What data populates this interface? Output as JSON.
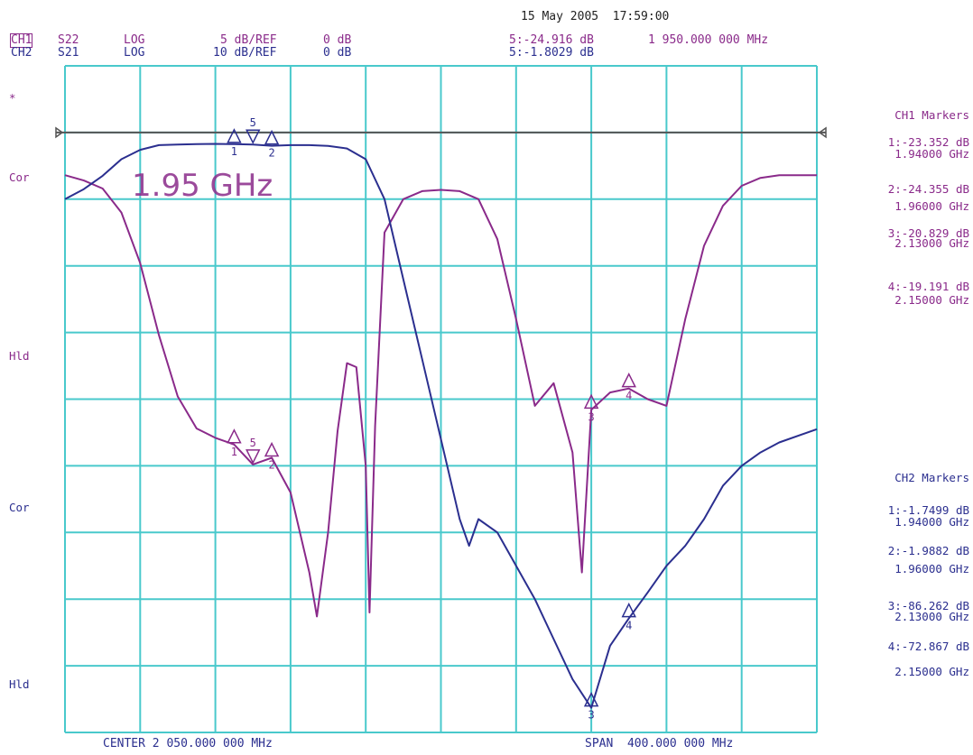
{
  "header": {
    "datetime": "15 May 2005  17:59:00",
    "ch1": {
      "label": "CH1",
      "param": "S22",
      "format": "LOG",
      "scale": "5 dB/REF",
      "ref": "0 dB"
    },
    "ch2": {
      "label": "CH2",
      "param": "S21",
      "format": "LOG",
      "scale": "10 dB/REF",
      "ref": "0 dB"
    },
    "marker5_ch1": "5:-24.916 dB",
    "marker5_freq": "1 950.000 000 MHz",
    "marker5_ch2": "5:-1.8029 dB"
  },
  "footer": {
    "center": "CENTER 2 050.000 000 MHz",
    "span": "SPAN  400.000 000 MHz"
  },
  "side_labels": {
    "star": "*",
    "cor1": "Cor",
    "hld1": "Hld",
    "cor2": "Cor",
    "hld2": "Hld"
  },
  "annotation": "1.95 GHz",
  "ch1_markers": {
    "title": "CH1 Markers",
    "items": [
      {
        "value": "1:-23.352 dB",
        "freq": "1.94000 GHz"
      },
      {
        "value": "2:-24.355 dB",
        "freq": "1.96000 GHz"
      },
      {
        "value": "3:-20.829 dB",
        "freq": "2.13000 GHz"
      },
      {
        "value": "4:-19.191 dB",
        "freq": "2.15000 GHz"
      }
    ]
  },
  "ch2_markers": {
    "title": "CH2 Markers",
    "items": [
      {
        "value": "1:-1.7499 dB",
        "freq": "1.94000 GHz"
      },
      {
        "value": "2:-1.9882 dB",
        "freq": "1.96000 GHz"
      },
      {
        "value": "3:-86.262 dB",
        "freq": "2.13000 GHz"
      },
      {
        "value": "4:-72.867 dB",
        "freq": "2.15000 GHz"
      }
    ]
  },
  "colors": {
    "grid": "#49c9cc",
    "ch1": "#8a2a8a",
    "ch2": "#2b2f8f",
    "ref_line": "#555555"
  },
  "chart_data": {
    "type": "line",
    "title": "",
    "xlabel": "",
    "ylabel": "",
    "x_unit": "GHz",
    "xlim": [
      1.85,
      2.25
    ],
    "grid": true,
    "series": [
      {
        "name": "CH1 S22",
        "scale_db_per_div": 5,
        "ref_db": 0,
        "ylim": [
          -45,
          5
        ],
        "points": [
          [
            1.85,
            -3.2
          ],
          [
            1.86,
            -3.6
          ],
          [
            1.87,
            -4.2
          ],
          [
            1.88,
            -6.0
          ],
          [
            1.89,
            -9.8
          ],
          [
            1.9,
            -15.2
          ],
          [
            1.91,
            -19.8
          ],
          [
            1.92,
            -22.2
          ],
          [
            1.93,
            -22.9
          ],
          [
            1.94,
            -23.4
          ],
          [
            1.95,
            -24.9
          ],
          [
            1.96,
            -24.4
          ],
          [
            1.97,
            -27.0
          ],
          [
            1.98,
            -33.0
          ],
          [
            1.984,
            -36.3
          ],
          [
            1.99,
            -30.0
          ],
          [
            1.995,
            -22.4
          ],
          [
            2.0,
            -17.3
          ],
          [
            2.005,
            -17.6
          ],
          [
            2.01,
            -25.0
          ],
          [
            2.012,
            -36.0
          ],
          [
            2.015,
            -22.0
          ],
          [
            2.02,
            -7.5
          ],
          [
            2.03,
            -5.0
          ],
          [
            2.04,
            -4.4
          ],
          [
            2.05,
            -4.3
          ],
          [
            2.06,
            -4.4
          ],
          [
            2.07,
            -5.0
          ],
          [
            2.08,
            -8.0
          ],
          [
            2.09,
            -14.0
          ],
          [
            2.1,
            -20.5
          ],
          [
            2.11,
            -18.8
          ],
          [
            2.12,
            -24.0
          ],
          [
            2.125,
            -33.0
          ],
          [
            2.13,
            -20.8
          ],
          [
            2.14,
            -19.5
          ],
          [
            2.15,
            -19.2
          ],
          [
            2.16,
            -20.0
          ],
          [
            2.17,
            -20.5
          ],
          [
            2.18,
            -14.0
          ],
          [
            2.19,
            -8.5
          ],
          [
            2.2,
            -5.5
          ],
          [
            2.21,
            -4.0
          ],
          [
            2.22,
            -3.4
          ],
          [
            2.23,
            -3.2
          ],
          [
            2.25,
            -3.2
          ]
        ]
      },
      {
        "name": "CH2 S21",
        "scale_db_per_div": 10,
        "ref_db": 0,
        "ylim": [
          -90,
          10
        ],
        "points": [
          [
            1.85,
            -10.0
          ],
          [
            1.86,
            -8.5
          ],
          [
            1.87,
            -6.5
          ],
          [
            1.88,
            -4.0
          ],
          [
            1.89,
            -2.6
          ],
          [
            1.9,
            -1.9
          ],
          [
            1.91,
            -1.8
          ],
          [
            1.92,
            -1.75
          ],
          [
            1.93,
            -1.7
          ],
          [
            1.94,
            -1.75
          ],
          [
            1.95,
            -1.8
          ],
          [
            1.96,
            -1.99
          ],
          [
            1.97,
            -1.9
          ],
          [
            1.98,
            -1.9
          ],
          [
            1.99,
            -2.0
          ],
          [
            2.0,
            -2.4
          ],
          [
            2.01,
            -4.0
          ],
          [
            2.02,
            -10.0
          ],
          [
            2.03,
            -22.0
          ],
          [
            2.04,
            -34.0
          ],
          [
            2.05,
            -46.0
          ],
          [
            2.06,
            -58.0
          ],
          [
            2.065,
            -62.0
          ],
          [
            2.07,
            -58.0
          ],
          [
            2.08,
            -60.0
          ],
          [
            2.09,
            -65.0
          ],
          [
            2.1,
            -70.0
          ],
          [
            2.11,
            -76.0
          ],
          [
            2.12,
            -82.0
          ],
          [
            2.13,
            -86.3
          ],
          [
            2.14,
            -77.0
          ],
          [
            2.15,
            -72.9
          ],
          [
            2.16,
            -69.0
          ],
          [
            2.17,
            -65.0
          ],
          [
            2.18,
            -62.0
          ],
          [
            2.19,
            -58.0
          ],
          [
            2.2,
            -53.0
          ],
          [
            2.21,
            -50.0
          ],
          [
            2.22,
            -48.0
          ],
          [
            2.23,
            -46.5
          ],
          [
            2.25,
            -44.5
          ]
        ]
      }
    ]
  }
}
